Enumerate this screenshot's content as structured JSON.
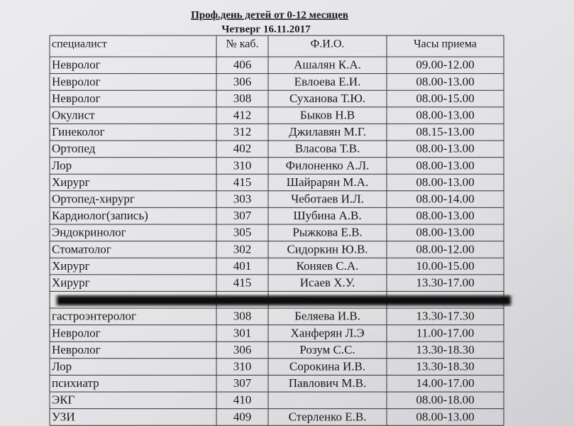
{
  "header": {
    "title": "Проф.день   детей от  0-12 месяцев",
    "subtitle": "Четверг     16.11.2017"
  },
  "table": {
    "columns": [
      "специалист",
      "№ каб.",
      "Ф.И.О.",
      "Часы приема"
    ],
    "rows": [
      {
        "specialist": "Невролог",
        "room": "406",
        "name": "Ашалян К.А.",
        "hours": "09.00-12.00"
      },
      {
        "specialist": "Невролог",
        "room": "306",
        "name": "Евлоева Е.И.",
        "hours": "08.00-13.00"
      },
      {
        "specialist": "Невролог",
        "room": "308",
        "name": "Суханова Т.Ю.",
        "hours": "08.00-15.00"
      },
      {
        "specialist": "Окулист",
        "room": "412",
        "name": "Быков Н.В",
        "hours": "08.00-13.00"
      },
      {
        "specialist": "Гинеколог",
        "room": "312",
        "name": "Джилавян М.Г.",
        "hours": "08.15-13.00"
      },
      {
        "specialist": "Ортопед",
        "room": "402",
        "name": "Власова Т.В.",
        "hours": "08.00-13.00"
      },
      {
        "specialist": "Лор",
        "room": "310",
        "name": "Филоненко А.Л.",
        "hours": "08.00-13.00"
      },
      {
        "specialist": "Хирург",
        "room": "415",
        "name": "Шайрарян М.А.",
        "hours": "08.00-13.00"
      },
      {
        "specialist": "Ортопед-хирург",
        "room": "303",
        "name": "Чеботаев И.Л.",
        "hours": "08.00-14.00"
      },
      {
        "specialist": "Кардиолог(запись)",
        "room": "307",
        "name": "Шубина А.В.",
        "hours": "08.00-13.00"
      },
      {
        "specialist": "Эндокринолог",
        "room": "305",
        "name": "Рыжкова Е.В.",
        "hours": "08.00-13.00"
      },
      {
        "specialist": "Стоматолог",
        "room": "302",
        "name": "Сидоркин Ю.В.",
        "hours": "08.00-12.00"
      },
      {
        "specialist": "Хирург",
        "room": "401",
        "name": "Коняев С.А.",
        "hours": "10.00-15.00"
      },
      {
        "specialist": "Хирург",
        "room": "415",
        "name": "Исаев Х.У.",
        "hours": "13.30-17.00"
      },
      {},
      {
        "specialist": "гастроэнтеролог",
        "room": "308",
        "name": "Беляева И.В.",
        "hours": "13.30-17.30"
      },
      {
        "specialist": "Невролог",
        "room": "301",
        "name": "Ханферян Л.Э",
        "hours": "11.00-17.00"
      },
      {
        "specialist": "Невролог",
        "room": "306",
        "name": "Розум С.С.",
        "hours": "13.30-18.30"
      },
      {
        "specialist": "Лор",
        "room": "310",
        "name": "Сорокина И.В.",
        "hours": "13.30-18.30"
      },
      {
        "specialist": "психиатр",
        "room": "307",
        "name": "Павлович М.В.",
        "hours": "14.00-17.00"
      },
      {
        "specialist": "ЭКГ",
        "room": "410",
        "hours": "08.00-18.00"
      },
      {
        "specialist": "УЗИ",
        "room": "409",
        "name": "Стерленко Е.В.",
        "hours": "08.00-13.00"
      }
    ]
  }
}
